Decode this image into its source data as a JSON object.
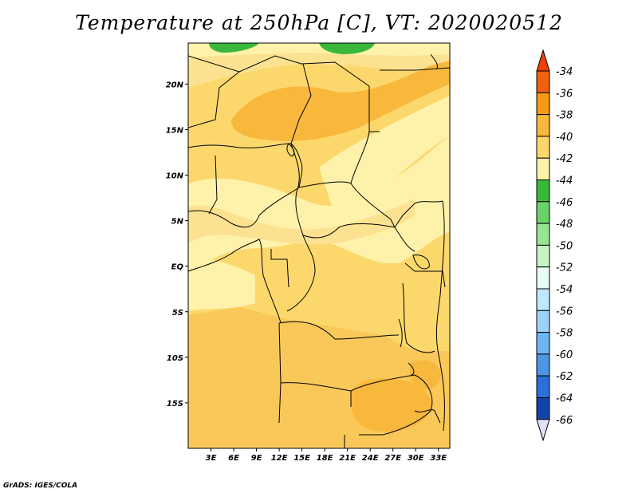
{
  "title": "Temperature at 250hPa [C], VT: 2020020512",
  "credit": "GrADS: IGES/COLA",
  "map": {
    "lon_range": [
      0,
      34.5
    ],
    "lat_range": [
      -20,
      24.5
    ],
    "lon_ticks": [
      {
        "value": 3,
        "label": "3E"
      },
      {
        "value": 6,
        "label": "6E"
      },
      {
        "value": 9,
        "label": "9E"
      },
      {
        "value": 12,
        "label": "12E"
      },
      {
        "value": 15,
        "label": "15E"
      },
      {
        "value": 18,
        "label": "18E"
      },
      {
        "value": 21,
        "label": "21E"
      },
      {
        "value": 24,
        "label": "24E"
      },
      {
        "value": 27,
        "label": "27E"
      },
      {
        "value": 30,
        "label": "30E"
      },
      {
        "value": 33,
        "label": "33E"
      }
    ],
    "lat_ticks": [
      {
        "value": 20,
        "label": "20N"
      },
      {
        "value": 15,
        "label": "15N"
      },
      {
        "value": 10,
        "label": "10N"
      },
      {
        "value": 5,
        "label": "5N"
      },
      {
        "value": 0,
        "label": "EQ"
      },
      {
        "value": -5,
        "label": "5S"
      },
      {
        "value": -10,
        "label": "10S"
      },
      {
        "value": -15,
        "label": "15S"
      }
    ]
  },
  "legend": {
    "levels": [
      {
        "label": "-34",
        "color": "#f06010"
      },
      {
        "label": "-36",
        "color": "#f59a14"
      },
      {
        "label": "-38",
        "color": "#f8b83c"
      },
      {
        "label": "-40",
        "color": "#fcd86c"
      },
      {
        "label": "-42",
        "color": "#fef2aa"
      },
      {
        "label": "-44",
        "color": "#3ab83a"
      },
      {
        "label": "-46",
        "color": "#6ad26a"
      },
      {
        "label": "-48",
        "color": "#98e494"
      },
      {
        "label": "-50",
        "color": "#c6f4c0"
      },
      {
        "label": "-52",
        "color": "#e8fcf4"
      },
      {
        "label": "-54",
        "color": "#bfe8fc"
      },
      {
        "label": "-56",
        "color": "#9cd2f8"
      },
      {
        "label": "-58",
        "color": "#6fb6f0"
      },
      {
        "label": "-60",
        "color": "#4c96e4"
      },
      {
        "label": "-62",
        "color": "#2a70d8"
      },
      {
        "label": "-64",
        "color": "#1244a8"
      },
      {
        "label": "-66",
        "color": "#0c1a78"
      }
    ],
    "top_arrow_color": "#f04000",
    "bottom_arrow_color": "#e0e0fc"
  }
}
